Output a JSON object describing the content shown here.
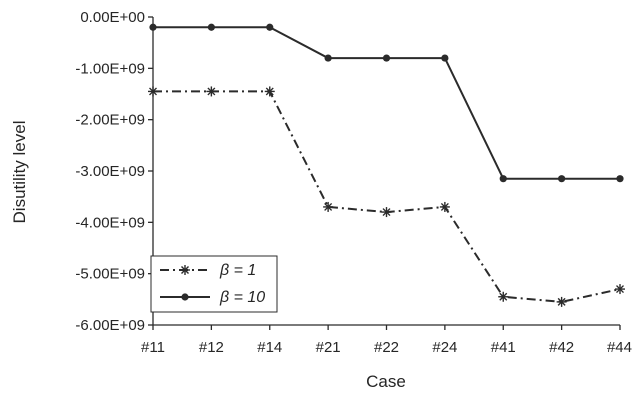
{
  "chart_data": {
    "type": "line",
    "xlabel": "Case",
    "ylabel": "Disutility level",
    "categories": [
      "#11",
      "#12",
      "#14",
      "#21",
      "#22",
      "#24",
      "#41",
      "#42",
      "#44"
    ],
    "ylim": [
      -6000000000,
      0
    ],
    "yticks": [
      0,
      -1000000000,
      -2000000000,
      -3000000000,
      -4000000000,
      -5000000000,
      -6000000000
    ],
    "ytick_labels": [
      "0.00E+00",
      "-1.00E+09",
      "-2.00E+09",
      "-3.00E+09",
      "-4.00E+09",
      "-5.00E+09",
      "-6.00E+09"
    ],
    "grid": false,
    "legend_position": "bottom-left",
    "series": [
      {
        "name": "β = 1",
        "line_style": "dash-dot",
        "marker": "asterisk",
        "color": "#2b2b2b",
        "values": [
          -1450000000,
          -1450000000,
          -1450000000,
          -3700000000,
          -3800000000,
          -3700000000,
          -5450000000,
          -5550000000,
          -5300000000
        ]
      },
      {
        "name": "β = 10",
        "line_style": "solid",
        "marker": "dot",
        "color": "#2b2b2b",
        "values": [
          -200000000,
          -200000000,
          -200000000,
          -800000000,
          -800000000,
          -800000000,
          -3150000000,
          -3150000000,
          -3150000000
        ]
      }
    ]
  }
}
